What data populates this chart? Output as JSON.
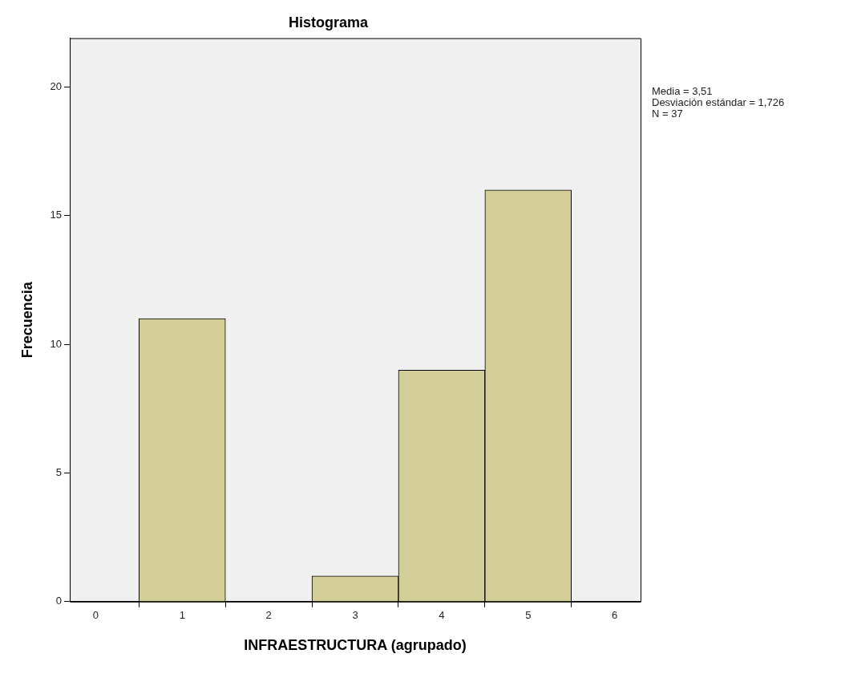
{
  "chart_data": {
    "type": "histogram",
    "title": "Histograma",
    "xlabel": "INFRAESTRUCTURA (agrupado)",
    "ylabel": "Frecuencia",
    "bins": [
      0.5,
      1.5,
      2.5,
      3.5,
      4.5,
      5.5
    ],
    "values": [
      11,
      0,
      1,
      9,
      16
    ],
    "color": "#d3ce97",
    "xlim": [
      -0.3,
      6.3
    ],
    "xticks": [
      0,
      1,
      2,
      3,
      4,
      5,
      6
    ],
    "ylim": [
      0,
      21.9
    ],
    "yticks": [
      0,
      5,
      10,
      15,
      20
    ],
    "grid": false,
    "legend": false,
    "annotations": [
      "Media = 3,51",
      "Desviación estándar = 1,726",
      "N = 37"
    ]
  }
}
